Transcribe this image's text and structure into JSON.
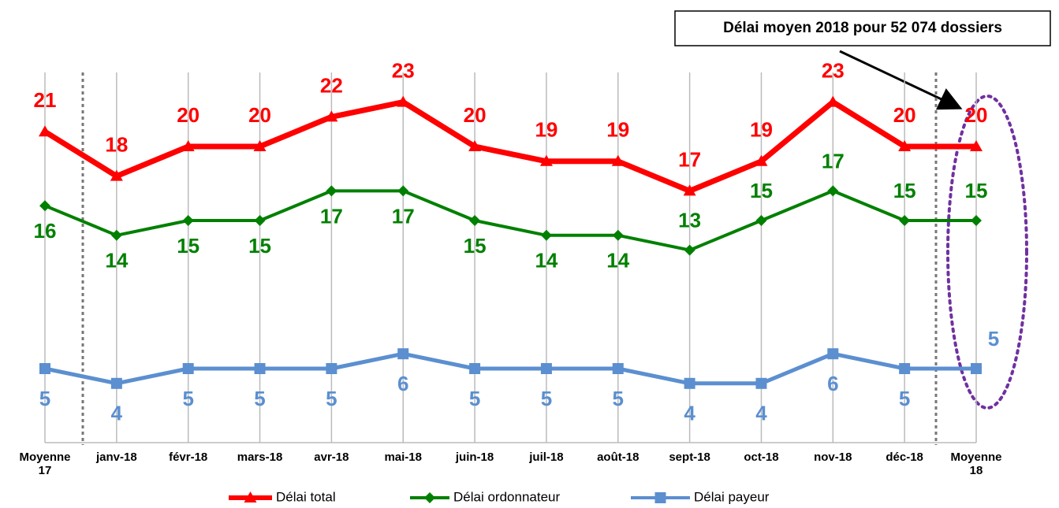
{
  "chart_data": {
    "type": "line",
    "annotation": "Délai moyen 2018 pour 52 074 dossiers",
    "categories": [
      "Moyenne\n17",
      "janv-18",
      "févr-18",
      "mars-18",
      "avr-18",
      "mai-18",
      "juin-18",
      "juil-18",
      "août-18",
      "sept-18",
      "oct-18",
      "nov-18",
      "déc-18",
      "Moyenne\n18"
    ],
    "series": [
      {
        "name": "Délai total",
        "color": "#ff0000",
        "values": [
          21,
          18,
          20,
          20,
          22,
          23,
          20,
          19,
          19,
          17,
          19,
          23,
          20,
          20
        ]
      },
      {
        "name": "Délai ordonnateur",
        "color": "#008000",
        "values": [
          16,
          14,
          15,
          15,
          17,
          17,
          15,
          14,
          14,
          13,
          15,
          17,
          15,
          15
        ]
      },
      {
        "name": "Délai payeur",
        "color": "#5b8fd0",
        "values": [
          5,
          4,
          5,
          5,
          5,
          6,
          5,
          5,
          5,
          4,
          4,
          6,
          5,
          5
        ]
      }
    ]
  }
}
